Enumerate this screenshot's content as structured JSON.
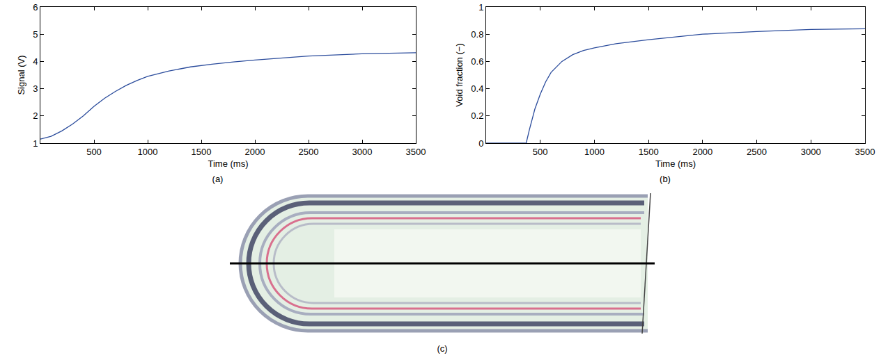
{
  "chart_data": [
    {
      "type": "line",
      "panel": "(a)",
      "x_label": "Time (ms)",
      "y_label": "Signal (V)",
      "x": [
        0,
        100,
        200,
        300,
        400,
        500,
        600,
        700,
        800,
        900,
        1000,
        1200,
        1400,
        1600,
        1800,
        2000,
        2500,
        3000,
        3500
      ],
      "values": [
        1.15,
        1.25,
        1.45,
        1.7,
        2.0,
        2.35,
        2.65,
        2.9,
        3.12,
        3.3,
        3.45,
        3.65,
        3.8,
        3.9,
        3.98,
        4.05,
        4.2,
        4.28,
        4.32
      ],
      "color": "#2b4c9c",
      "xlim": [
        0,
        3500
      ],
      "xticks": [
        500,
        1000,
        1500,
        2000,
        2500,
        3000,
        3500
      ],
      "ylim": [
        1,
        6
      ],
      "yticks": [
        1,
        2,
        3,
        4,
        5,
        6
      ],
      "grid": false
    },
    {
      "type": "line",
      "panel": "(b)",
      "x_label": "Time (ms)",
      "y_label": "Void fraction (−)",
      "x": [
        0,
        100,
        200,
        300,
        370,
        400,
        450,
        500,
        550,
        600,
        700,
        800,
        900,
        1000,
        1200,
        1500,
        2000,
        2500,
        3000,
        3500
      ],
      "values": [
        0,
        0,
        0,
        0,
        0,
        0.1,
        0.25,
        0.36,
        0.45,
        0.52,
        0.6,
        0.65,
        0.68,
        0.7,
        0.73,
        0.76,
        0.8,
        0.82,
        0.835,
        0.84
      ],
      "color": "#2b4c9c",
      "xlim": [
        0,
        3500
      ],
      "xticks": [
        500,
        1000,
        1500,
        2000,
        2500,
        3000,
        3500
      ],
      "ylim": [
        0,
        1
      ],
      "yticks": [
        0,
        0.2,
        0.4,
        0.6,
        0.8,
        1
      ],
      "grid": false
    }
  ],
  "photo": {
    "panel": "(c)"
  }
}
